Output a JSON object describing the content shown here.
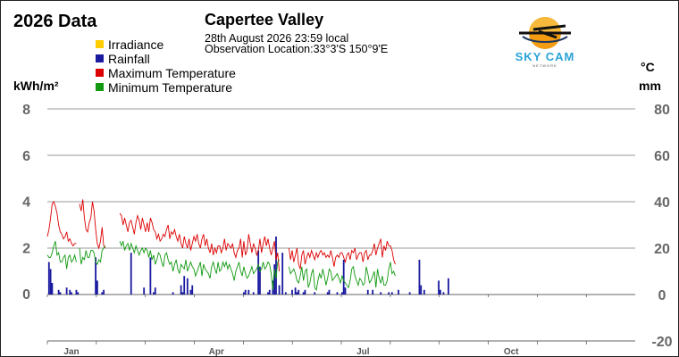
{
  "header": {
    "year_title": "2026 Data",
    "station": "Capertee Valley",
    "date_line": "28th August 2026  23:59 local",
    "location_line": "Observation Location:33°3'S 150°9'E"
  },
  "logo": {
    "text": "SKY CAM",
    "subtext": "NETWORK",
    "icon": "plane-sun-logo-icon"
  },
  "legend": [
    {
      "label": "Irradiance",
      "color": "#ffcc00"
    },
    {
      "label": "Rainfall",
      "color": "#1a1aa0"
    },
    {
      "label": "Maximum Temperature",
      "color": "#dd0000"
    },
    {
      "label": "Minimum Temperature",
      "color": "#119911"
    }
  ],
  "axes": {
    "left_unit": "kWh/m²",
    "right_unit_temp": "°C",
    "right_unit_rain": "mm"
  },
  "chart_data": {
    "type": "line",
    "ylim_left": [
      0,
      8
    ],
    "ylim_right": [
      -20,
      80
    ],
    "left_ticks": [
      "0",
      "2",
      "4",
      "6",
      "8"
    ],
    "right_ticks": [
      "-20",
      "0",
      "20",
      "40",
      "60",
      "80"
    ],
    "x_labels": [
      {
        "label": "Jan",
        "day": 15
      },
      {
        "label": "Apr",
        "day": 105
      },
      {
        "label": "Jul",
        "day": 196
      },
      {
        "label": "Oct",
        "day": 288
      }
    ],
    "x_range_days": [
      0,
      365
    ],
    "grid": true,
    "legend_position": "top-left",
    "series": [
      {
        "name": "Maximum Temperature",
        "color": "#dd0000",
        "axis": "right",
        "segments": [
          {
            "start_day": 0,
            "values": [
              25,
              28,
              33,
              39,
              40,
              38,
              35,
              30,
              27,
              26,
              24,
              25,
              27,
              23,
              24,
              22,
              21,
              22,
              22
            ]
          },
          {
            "start_day": 20,
            "values": [
              39,
              36,
              41,
              33,
              28,
              27,
              31,
              33,
              40,
              36,
              28,
              22,
              20,
              23,
              29,
              21,
              20
            ]
          },
          {
            "start_day": 45,
            "values": [
              35,
              34,
              30,
              33,
              30,
              27,
              31,
              32,
              29,
              26,
              31,
              34,
              32,
              28,
              33,
              30,
              27,
              31,
              27,
              33,
              31,
              28,
              27,
              24,
              26,
              23,
              24,
              26,
              25,
              28,
              30,
              24,
              27,
              26,
              28,
              25,
              23,
              26,
              22,
              20,
              25,
              22,
              20,
              24,
              19,
              22,
              25,
              23,
              26,
              22,
              20,
              24,
              26,
              21,
              24,
              20,
              18,
              22,
              17,
              20,
              18,
              21,
              21,
              18,
              20,
              24,
              19,
              22,
              21,
              20,
              22,
              18,
              16,
              19,
              20,
              24,
              16,
              23,
              17,
              19,
              26,
              22,
              18,
              22,
              20,
              17,
              19,
              24,
              18,
              22,
              25,
              21,
              24,
              20,
              17,
              20,
              23,
              15,
              18,
              10
            ]
          },
          {
            "start_day": 150,
            "values": [
              20,
              15,
              19,
              14,
              17,
              20,
              13,
              11,
              17,
              19,
              13,
              16,
              18,
              16,
              19,
              17,
              15,
              18,
              16,
              18,
              19,
              17,
              18,
              16,
              17,
              16,
              19,
              16,
              12,
              16,
              17,
              16,
              18,
              18,
              16,
              14,
              17,
              18,
              15,
              19,
              18,
              20,
              15,
              17,
              18,
              18,
              14,
              18,
              19,
              15,
              17,
              17,
              19,
              22,
              17,
              20,
              22,
              24,
              16,
              21,
              19,
              23,
              21,
              21,
              19,
              15,
              13
            ]
          }
        ]
      },
      {
        "name": "Minimum Temperature",
        "color": "#119911",
        "axis": "right",
        "segments": [
          {
            "start_day": 0,
            "values": [
              17,
              16,
              16,
              18,
              21,
              23,
              17,
              18,
              14,
              14,
              16,
              17,
              11,
              16,
              17,
              14,
              15,
              17,
              14
            ]
          },
          {
            "start_day": 20,
            "values": [
              20,
              13,
              16,
              15,
              19,
              16,
              16,
              19,
              19,
              18,
              14,
              13,
              15,
              14,
              19,
              20,
              21
            ]
          },
          {
            "start_day": 45,
            "values": [
              23,
              21,
              23,
              19,
              21,
              22,
              19,
              22,
              20,
              18,
              21,
              19,
              17,
              19,
              20,
              18,
              20,
              19,
              16,
              19,
              15,
              17,
              13,
              15,
              18,
              17,
              14,
              12,
              17,
              18,
              15,
              13,
              14,
              10,
              13,
              15,
              11,
              9,
              13,
              12,
              11,
              15,
              10,
              12,
              14,
              12,
              11,
              8,
              10,
              12,
              14,
              8,
              13,
              11,
              10,
              9,
              7,
              12,
              14,
              11,
              9,
              14,
              10,
              11,
              14,
              12,
              14,
              11,
              13,
              11,
              9,
              6,
              10,
              12,
              14,
              10,
              8,
              12,
              9,
              7,
              8,
              10,
              12,
              9,
              10,
              11,
              13,
              10,
              11,
              14,
              11,
              12,
              14,
              13,
              9,
              2,
              11,
              7,
              14,
              15
            ]
          },
          {
            "start_day": 150,
            "values": [
              12,
              9,
              10,
              11,
              9,
              6,
              5,
              8,
              12,
              6,
              10,
              11,
              3,
              5,
              9,
              11,
              3,
              2,
              6,
              9,
              7,
              11,
              8,
              4,
              7,
              11,
              10,
              6,
              7,
              8,
              9,
              7,
              5,
              8,
              6,
              5,
              4,
              3,
              6,
              11,
              12,
              8,
              6,
              4,
              7,
              6,
              4,
              5,
              12,
              9,
              5,
              6,
              8,
              10,
              3,
              11,
              7,
              5,
              8,
              4,
              4,
              6,
              11,
              14,
              9,
              10,
              8
            ]
          }
        ]
      }
    ],
    "rainfall_bars": [
      {
        "day": 1,
        "mm": 14
      },
      {
        "day": 2,
        "mm": 11
      },
      {
        "day": 3,
        "mm": 5
      },
      {
        "day": 7,
        "mm": 2
      },
      {
        "day": 8,
        "mm": 1
      },
      {
        "day": 12,
        "mm": 3
      },
      {
        "day": 14,
        "mm": 2
      },
      {
        "day": 15,
        "mm": 1
      },
      {
        "day": 18,
        "mm": 2
      },
      {
        "day": 19,
        "mm": 1
      },
      {
        "day": 30,
        "mm": 16
      },
      {
        "day": 31,
        "mm": 6
      },
      {
        "day": 34,
        "mm": 1
      },
      {
        "day": 35,
        "mm": 2
      },
      {
        "day": 52,
        "mm": 18
      },
      {
        "day": 60,
        "mm": 3
      },
      {
        "day": 64,
        "mm": 16
      },
      {
        "day": 66,
        "mm": 1
      },
      {
        "day": 67,
        "mm": 3
      },
      {
        "day": 78,
        "mm": 1
      },
      {
        "day": 83,
        "mm": 4
      },
      {
        "day": 84,
        "mm": 1
      },
      {
        "day": 85,
        "mm": 8
      },
      {
        "day": 87,
        "mm": 7
      },
      {
        "day": 89,
        "mm": 2
      },
      {
        "day": 90,
        "mm": 4
      },
      {
        "day": 122,
        "mm": 1
      },
      {
        "day": 123,
        "mm": 2
      },
      {
        "day": 125,
        "mm": 2
      },
      {
        "day": 128,
        "mm": 1
      },
      {
        "day": 131,
        "mm": 19
      },
      {
        "day": 132,
        "mm": 12
      },
      {
        "day": 137,
        "mm": 1
      },
      {
        "day": 138,
        "mm": 2
      },
      {
        "day": 140,
        "mm": 6
      },
      {
        "day": 141,
        "mm": 13
      },
      {
        "day": 142,
        "mm": 25
      },
      {
        "day": 144,
        "mm": 4
      },
      {
        "day": 146,
        "mm": 18
      },
      {
        "day": 148,
        "mm": 1
      },
      {
        "day": 152,
        "mm": 2
      },
      {
        "day": 154,
        "mm": 3
      },
      {
        "day": 155,
        "mm": 1
      },
      {
        "day": 156,
        "mm": 2
      },
      {
        "day": 159,
        "mm": 1
      },
      {
        "day": 160,
        "mm": 2
      },
      {
        "day": 166,
        "mm": 1
      },
      {
        "day": 174,
        "mm": 1
      },
      {
        "day": 175,
        "mm": 2
      },
      {
        "day": 180,
        "mm": 1
      },
      {
        "day": 183,
        "mm": 1
      },
      {
        "day": 184,
        "mm": 15
      },
      {
        "day": 185,
        "mm": 3
      },
      {
        "day": 199,
        "mm": 2
      },
      {
        "day": 202,
        "mm": 2
      },
      {
        "day": 207,
        "mm": 1
      },
      {
        "day": 212,
        "mm": 1
      },
      {
        "day": 214,
        "mm": 1
      },
      {
        "day": 218,
        "mm": 2
      },
      {
        "day": 225,
        "mm": 1
      },
      {
        "day": 231,
        "mm": 15
      },
      {
        "day": 232,
        "mm": 4
      },
      {
        "day": 234,
        "mm": 2
      },
      {
        "day": 243,
        "mm": 6
      },
      {
        "day": 244,
        "mm": 2
      },
      {
        "day": 246,
        "mm": 1
      },
      {
        "day": 249,
        "mm": 7
      }
    ]
  }
}
